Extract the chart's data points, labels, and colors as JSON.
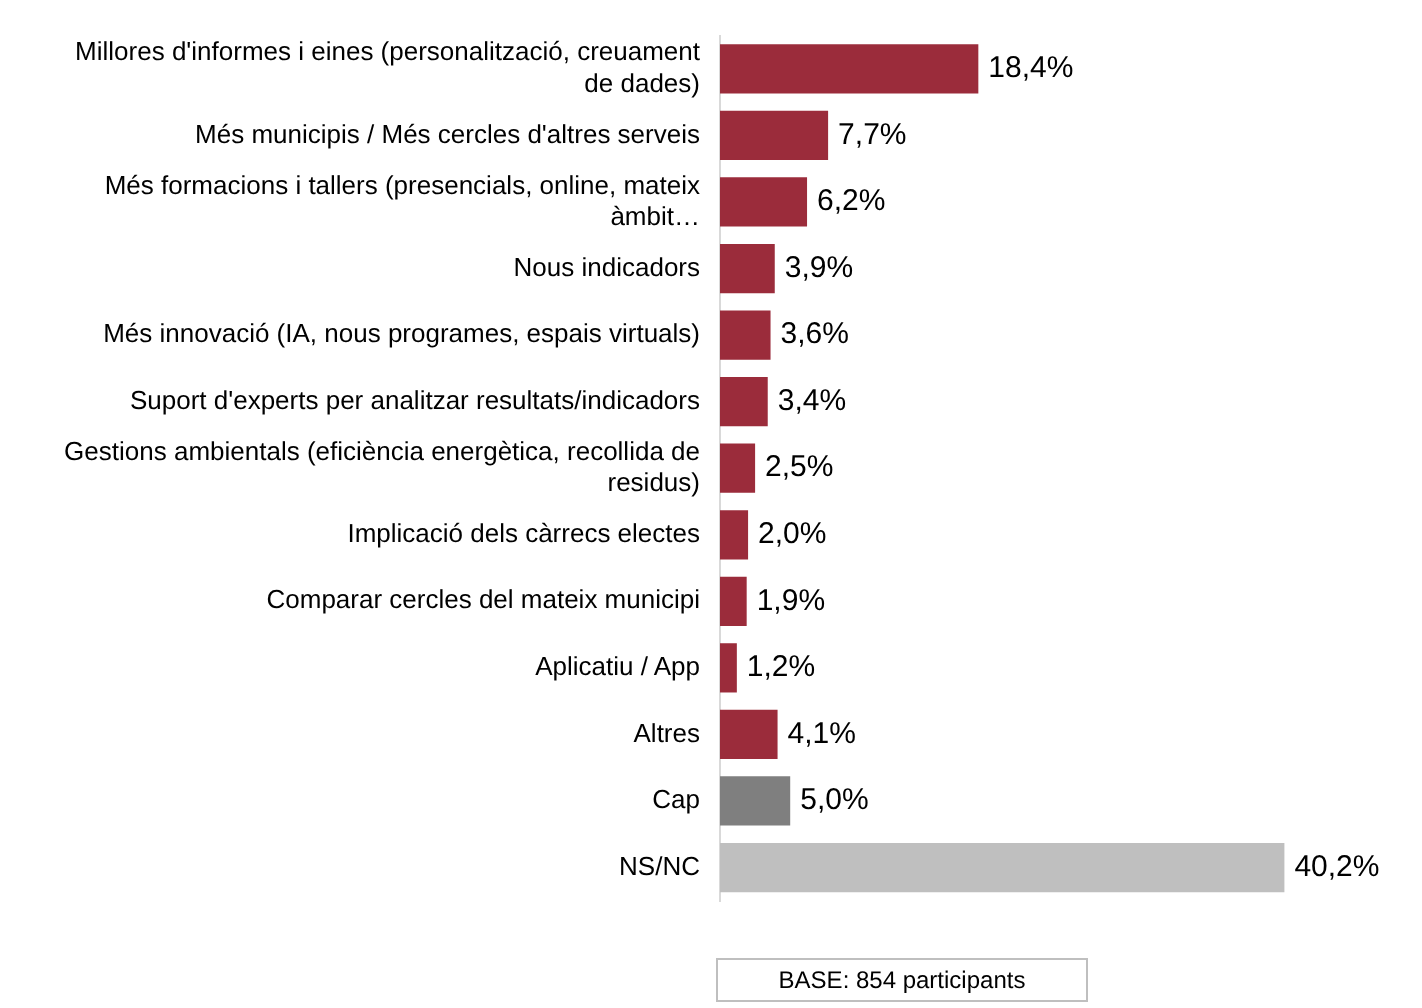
{
  "chart_data": {
    "type": "bar",
    "orientation": "horizontal",
    "categories": [
      "Millores d'informes i eines (personalització, creuament de dades)",
      "Més municipis / Més cercles d'altres serveis",
      "Més formacions i tallers (presencials, online, mateix àmbit…",
      "Nous indicadors",
      "Més innovació (IA, nous programes, espais virtuals)",
      "Suport d'experts per analitzar resultats/indicadors",
      "Gestions ambientals (eficiència energètica, recollida de residus)",
      "Implicació dels càrrecs electes",
      "Comparar cercles del mateix municipi",
      "Aplicatiu / App",
      "Altres",
      "Cap",
      "NS/NC"
    ],
    "values": [
      18.4,
      7.7,
      6.2,
      3.9,
      3.6,
      3.4,
      2.5,
      2.0,
      1.9,
      1.2,
      4.1,
      5.0,
      40.2
    ],
    "value_labels": [
      "18,4%",
      "7,7%",
      "6,2%",
      "3,9%",
      "3,6%",
      "3,4%",
      "2,5%",
      "2,0%",
      "1,9%",
      "1,2%",
      "4,1%",
      "5,0%",
      "40,2%"
    ],
    "colors": [
      "#9b2c3b",
      "#9b2c3b",
      "#9b2c3b",
      "#9b2c3b",
      "#9b2c3b",
      "#9b2c3b",
      "#9b2c3b",
      "#9b2c3b",
      "#9b2c3b",
      "#9b2c3b",
      "#9b2c3b",
      "#7f7f7f",
      "#bfbfbf"
    ],
    "legend": false,
    "annotations": [
      "BASE: 854 participants"
    ]
  }
}
